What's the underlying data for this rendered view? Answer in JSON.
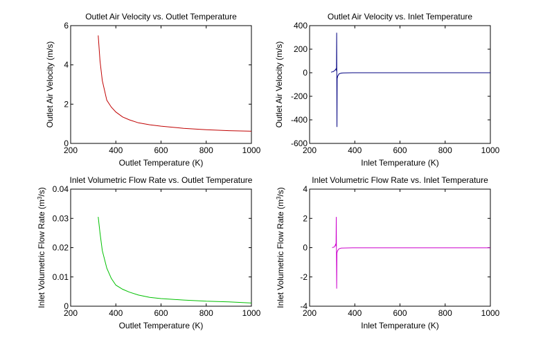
{
  "chart_data": [
    {
      "type": "line",
      "title": "Outlet Air Velocity vs. Outlet Temperature",
      "xlabel": "Outlet Temperature (K)",
      "ylabel": "Outlet Air Velocity (m/s)",
      "xlim": [
        200,
        1000
      ],
      "ylim": [
        0,
        6
      ],
      "xticks": [
        200,
        400,
        600,
        800,
        1000
      ],
      "yticks": [
        0,
        2,
        4,
        6
      ],
      "grid": false,
      "color": "#c00000",
      "series": [
        {
          "name": "velocity",
          "x": [
            322,
            330,
            340,
            360,
            380,
            400,
            430,
            460,
            500,
            550,
            600,
            700,
            800,
            900,
            1000
          ],
          "y": [
            5.5,
            4.2,
            3.2,
            2.2,
            1.85,
            1.6,
            1.35,
            1.2,
            1.05,
            0.95,
            0.88,
            0.77,
            0.7,
            0.65,
            0.62
          ]
        }
      ]
    },
    {
      "type": "line",
      "title": "Outlet Air Velocity vs. Inlet Temperature",
      "xlabel": "Inlet Temperature (K)",
      "ylabel": "Outlet Air Velocity (m/s)",
      "xlim": [
        200,
        1000
      ],
      "ylim": [
        -600,
        400
      ],
      "xticks": [
        200,
        400,
        600,
        800,
        1000
      ],
      "yticks": [
        -600,
        -400,
        -200,
        0,
        200,
        400
      ],
      "grid": false,
      "color": "#000080",
      "series": [
        {
          "name": "velocity",
          "x": [
            295,
            305,
            312,
            318,
            319,
            320,
            321,
            322,
            324,
            330,
            340,
            350,
            400,
            1000
          ],
          "y": [
            5,
            10,
            20,
            35,
            15,
            340,
            -460,
            -50,
            -30,
            -10,
            -3,
            -1,
            0,
            0
          ]
        }
      ]
    },
    {
      "type": "line",
      "title": "Inlet Volumetric Flow Rate vs. Outlet Temperature",
      "xlabel": "Outlet Temperature (K)",
      "ylabel": "Inlet Volumetric Flow Rate (m^3/s)",
      "xlim": [
        200,
        1000
      ],
      "ylim": [
        0,
        0.04
      ],
      "xticks": [
        200,
        400,
        600,
        800,
        1000
      ],
      "yticks": [
        0,
        0.01,
        0.02,
        0.03,
        0.04
      ],
      "grid": false,
      "color": "#00c000",
      "series": [
        {
          "name": "flow",
          "x": [
            322,
            330,
            340,
            360,
            380,
            400,
            430,
            460,
            500,
            550,
            600,
            700,
            800,
            900,
            1000
          ],
          "y": [
            0.0305,
            0.025,
            0.019,
            0.013,
            0.0095,
            0.0072,
            0.0058,
            0.0048,
            0.0038,
            0.003,
            0.0026,
            0.0021,
            0.0017,
            0.0015,
            0.0011
          ]
        }
      ]
    },
    {
      "type": "line",
      "title": "Inlet Volumetric Flow Rate vs. Inlet Temperature",
      "xlabel": "Inlet Temperature (K)",
      "ylabel": "Inlet Volumetric Flow Rate (m^3/s)",
      "xlim": [
        200,
        1000
      ],
      "ylim": [
        -4,
        4
      ],
      "xticks": [
        200,
        400,
        600,
        800,
        1000
      ],
      "yticks": [
        -4,
        -2,
        0,
        2,
        4
      ],
      "grid": false,
      "color": "#cc00cc",
      "series": [
        {
          "name": "flow",
          "x": [
            300,
            310,
            316,
            317,
            318,
            320,
            321,
            324,
            330,
            340,
            400,
            1000
          ],
          "y": [
            0,
            0.05,
            0.25,
            0.1,
            2.1,
            -2.8,
            -0.35,
            -0.2,
            -0.08,
            -0.03,
            -0.01,
            -0.01
          ]
        }
      ]
    }
  ]
}
